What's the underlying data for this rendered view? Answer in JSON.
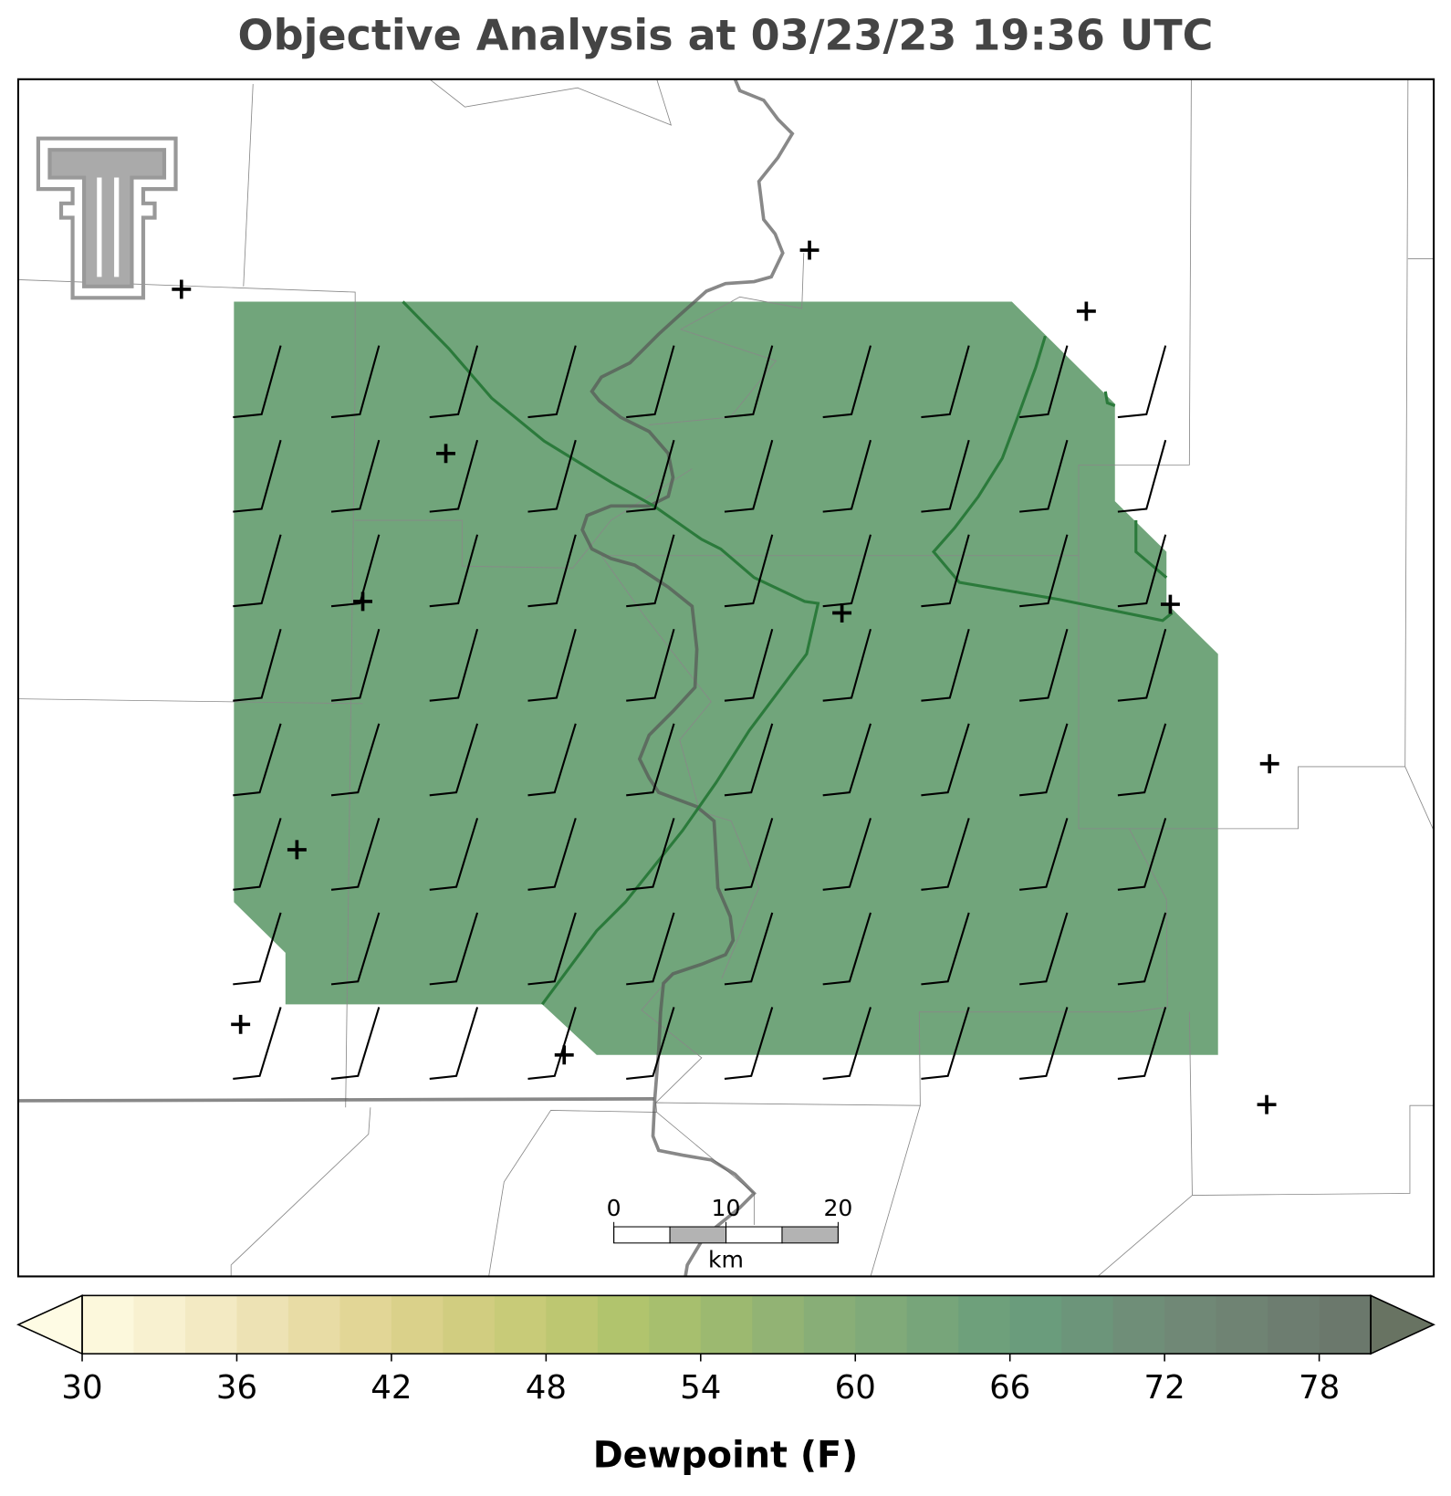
{
  "title": "Objective Analysis at 03/23/23 19:36 UTC",
  "colorbar": {
    "label": "Dewpoint (F)",
    "levels": [
      30,
      32,
      34,
      36,
      38,
      40,
      42,
      44,
      46,
      48,
      50,
      52,
      54,
      56,
      58,
      60,
      62,
      64,
      66,
      68,
      70,
      72,
      74,
      76,
      78,
      80
    ],
    "colors": [
      "#fcf8dc",
      "#f8f1d0",
      "#f3eac3",
      "#ede2b4",
      "#e8dca5",
      "#e2d696",
      "#dad18a",
      "#d1cd80",
      "#c8cb78",
      "#bdc771",
      "#b1c46d",
      "#a7bf6e",
      "#9cb970",
      "#92b374",
      "#88ae77",
      "#80aa79",
      "#77a57a",
      "#6ea07b",
      "#6a9c7c",
      "#6c957a",
      "#6f8e78",
      "#708876",
      "#6f8373",
      "#6d7d70",
      "#6b786c"
    ],
    "under_color": "#fefbe4",
    "over_color": "#687362",
    "ticks": [
      30,
      36,
      42,
      48,
      54,
      60,
      66,
      72,
      78
    ]
  },
  "scalebar": {
    "ticks": [
      0,
      10,
      20
    ],
    "unit": "km"
  }
}
